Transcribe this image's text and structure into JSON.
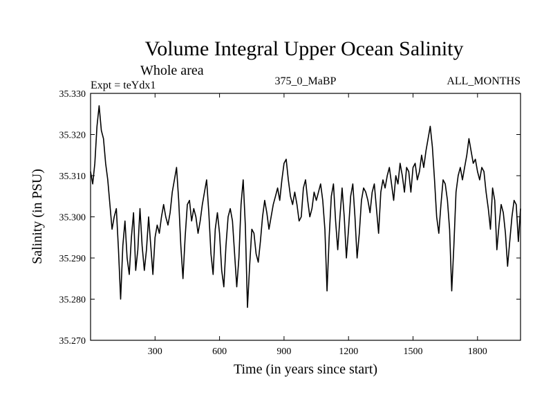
{
  "chart_data": {
    "type": "line",
    "title": "Volume Integral Upper Ocean Salinity",
    "subtitle": "Whole area",
    "left_header": "Expt = teYdx1",
    "center_header": "375_0_MaBP",
    "right_header": "ALL_MONTHS",
    "xlabel": "Time (in years since start)",
    "ylabel": "Salinity (in PSU)",
    "xlim": [
      0,
      2000
    ],
    "ylim": [
      35.27,
      35.33
    ],
    "xticks": [
      300,
      600,
      900,
      1200,
      1500,
      1800
    ],
    "xtick_labels": [
      "300",
      "600",
      "900",
      "1200",
      "1500",
      "1800"
    ],
    "yticks": [
      35.27,
      35.28,
      35.29,
      35.3,
      35.31,
      35.32,
      35.33
    ],
    "ytick_labels": [
      "35.270",
      "35.280",
      "35.290",
      "35.300",
      "35.310",
      "35.320",
      "35.330"
    ],
    "series": [
      {
        "name": "salinity",
        "x": [
          0,
          10,
          20,
          30,
          40,
          50,
          60,
          70,
          80,
          90,
          100,
          110,
          120,
          130,
          140,
          150,
          160,
          170,
          180,
          190,
          200,
          210,
          220,
          230,
          240,
          250,
          260,
          270,
          280,
          290,
          300,
          310,
          320,
          330,
          340,
          350,
          360,
          370,
          380,
          390,
          400,
          410,
          420,
          430,
          440,
          450,
          460,
          470,
          480,
          490,
          500,
          510,
          520,
          530,
          540,
          550,
          560,
          570,
          580,
          590,
          600,
          610,
          620,
          630,
          640,
          650,
          660,
          670,
          680,
          690,
          700,
          710,
          720,
          730,
          740,
          750,
          760,
          770,
          780,
          790,
          800,
          810,
          820,
          830,
          840,
          850,
          860,
          870,
          880,
          890,
          900,
          910,
          920,
          930,
          940,
          950,
          960,
          970,
          980,
          990,
          1000,
          1010,
          1020,
          1030,
          1040,
          1050,
          1060,
          1070,
          1080,
          1090,
          1100,
          1110,
          1120,
          1130,
          1140,
          1150,
          1160,
          1170,
          1180,
          1190,
          1200,
          1210,
          1220,
          1230,
          1240,
          1250,
          1260,
          1270,
          1280,
          1290,
          1300,
          1310,
          1320,
          1330,
          1340,
          1350,
          1360,
          1370,
          1380,
          1390,
          1400,
          1410,
          1420,
          1430,
          1440,
          1450,
          1460,
          1470,
          1480,
          1490,
          1500,
          1510,
          1520,
          1530,
          1540,
          1550,
          1560,
          1570,
          1580,
          1590,
          1600,
          1610,
          1620,
          1630,
          1640,
          1650,
          1660,
          1670,
          1680,
          1690,
          1700,
          1710,
          1720,
          1730,
          1740,
          1750,
          1760,
          1770,
          1780,
          1790,
          1800,
          1810,
          1820,
          1830,
          1840,
          1850,
          1860,
          1870,
          1880,
          1890,
          1900,
          1910,
          1920,
          1930,
          1940,
          1950,
          1960,
          1970,
          1980,
          1990,
          2000
        ],
        "values": [
          35.311,
          35.308,
          35.313,
          35.322,
          35.327,
          35.321,
          35.319,
          35.313,
          35.309,
          35.303,
          35.297,
          35.3,
          35.302,
          35.292,
          35.28,
          35.293,
          35.299,
          35.29,
          35.286,
          35.295,
          35.301,
          35.287,
          35.292,
          35.302,
          35.293,
          35.287,
          35.292,
          35.3,
          35.293,
          35.286,
          35.295,
          35.298,
          35.296,
          35.3,
          35.303,
          35.3,
          35.298,
          35.301,
          35.306,
          35.309,
          35.312,
          35.304,
          35.293,
          35.285,
          35.295,
          35.303,
          35.304,
          35.299,
          35.302,
          35.3,
          35.296,
          35.299,
          35.303,
          35.306,
          35.309,
          35.301,
          35.291,
          35.286,
          35.297,
          35.301,
          35.296,
          35.287,
          35.283,
          35.293,
          35.3,
          35.302,
          35.299,
          35.291,
          35.283,
          35.29,
          35.303,
          35.309,
          35.298,
          35.278,
          35.288,
          35.297,
          35.296,
          35.291,
          35.289,
          35.294,
          35.3,
          35.304,
          35.301,
          35.297,
          35.3,
          35.303,
          35.305,
          35.307,
          35.304,
          35.309,
          35.313,
          35.314,
          35.309,
          35.305,
          35.303,
          35.306,
          35.303,
          35.299,
          35.3,
          35.307,
          35.309,
          35.304,
          35.3,
          35.302,
          35.306,
          35.304,
          35.306,
          35.308,
          35.304,
          35.297,
          35.282,
          35.295,
          35.305,
          35.308,
          35.299,
          35.292,
          35.3,
          35.307,
          35.3,
          35.29,
          35.297,
          35.305,
          35.308,
          35.3,
          35.29,
          35.296,
          35.304,
          35.307,
          35.306,
          35.304,
          35.301,
          35.306,
          35.308,
          35.302,
          35.296,
          35.306,
          35.309,
          35.307,
          35.31,
          35.312,
          35.308,
          35.304,
          35.31,
          35.308,
          35.313,
          35.31,
          35.306,
          35.312,
          35.311,
          35.306,
          35.312,
          35.313,
          35.309,
          35.311,
          35.315,
          35.312,
          35.316,
          35.319,
          35.322,
          35.317,
          35.309,
          35.3,
          35.296,
          35.303,
          35.309,
          35.308,
          35.304,
          35.297,
          35.282,
          35.293,
          35.306,
          35.31,
          35.312,
          35.309,
          35.312,
          35.315,
          35.319,
          35.316,
          35.313,
          35.314,
          35.311,
          35.309,
          35.312,
          35.311,
          35.306,
          35.302,
          35.297,
          35.307,
          35.304,
          35.292,
          35.298,
          35.303,
          35.301,
          35.296,
          35.288,
          35.294,
          35.3,
          35.304,
          35.303,
          35.294,
          35.302
        ]
      }
    ],
    "grid": false,
    "legend": "none"
  },
  "colors": {
    "line": "#000000",
    "axis": "#000000",
    "background": "#ffffff"
  }
}
